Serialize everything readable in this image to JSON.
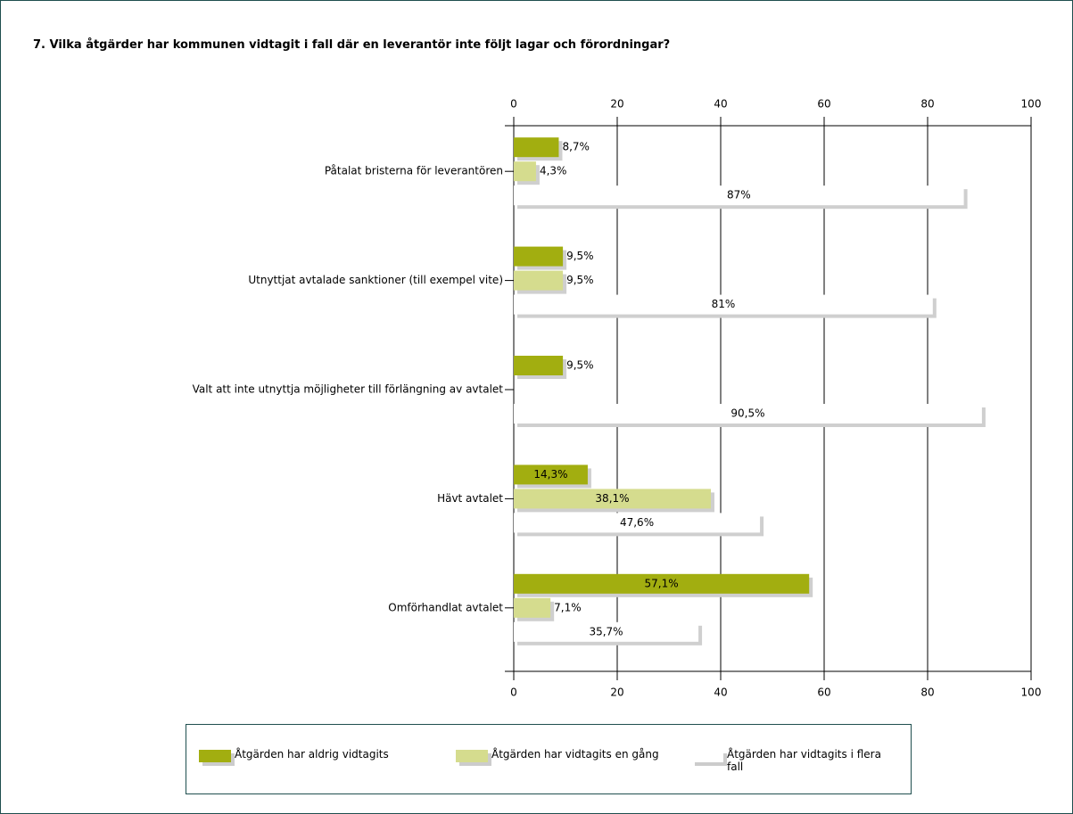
{
  "chart_data": {
    "type": "hbar",
    "title": "7. Vilka åtgärder har kommunen vidtagit i fall där en leverantör inte följt lagar och förordningar?",
    "categories": [
      "Påtalat bristerna för leverantören",
      "Utnyttjat avtalade sanktioner (till exempel vite)",
      "Valt att inte utnyttja möjligheter till förlängning av avtalet",
      "Hävt avtalet",
      "Omförhandlat avtalet"
    ],
    "series": [
      {
        "name": "Åtgärden har aldrig vidtagits",
        "color": "#a2ae10",
        "values": [
          8.7,
          9.5,
          9.5,
          14.3,
          57.1
        ],
        "value_labels": [
          "8,7%",
          "9,5%",
          "9,5%",
          "14,3%",
          "57,1%"
        ]
      },
      {
        "name": "Åtgärden har vidtagits en gång",
        "color": "#d5dc8e",
        "values": [
          4.3,
          9.5,
          null,
          38.1,
          7.1
        ],
        "value_labels": [
          "4,3%",
          "9,5%",
          null,
          "38,1%",
          "7,1%"
        ]
      },
      {
        "name": "Åtgärden har vidtagits i flera fall",
        "color": "#ffffff",
        "values": [
          87,
          81,
          90.5,
          47.6,
          35.7
        ],
        "value_labels": [
          "87%",
          "81%",
          "90,5%",
          "47,6%",
          "35,7%"
        ]
      }
    ],
    "xlim": [
      0,
      100
    ],
    "xticks": [
      0,
      20,
      40,
      60,
      80,
      100
    ],
    "grid": true
  }
}
